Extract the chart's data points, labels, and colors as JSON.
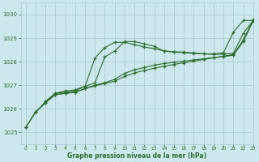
{
  "background_color": "#cce8ec",
  "grid_color": "#aacdd4",
  "line_color": "#2d6e2d",
  "xlabel": "Graphe pression niveau de la mer (hPa)",
  "xlim": [
    -0.5,
    23
  ],
  "ylim": [
    1024.5,
    1030.5
  ],
  "yticks": [
    1025,
    1026,
    1027,
    1028,
    1029,
    1030
  ],
  "xticks": [
    0,
    1,
    2,
    3,
    4,
    5,
    6,
    7,
    8,
    9,
    10,
    11,
    12,
    13,
    14,
    15,
    16,
    17,
    18,
    19,
    20,
    21,
    22,
    23
  ],
  "series1_x": [
    0,
    1,
    2,
    3,
    4,
    5,
    6,
    7,
    8,
    9,
    10,
    11,
    12,
    13,
    14,
    15,
    16,
    17,
    18,
    19,
    20,
    21,
    22,
    23
  ],
  "series1_y": [
    1025.2,
    1025.85,
    1026.3,
    1026.65,
    1026.7,
    1026.75,
    1026.95,
    1027.1,
    1028.2,
    1028.45,
    1028.85,
    1028.85,
    1028.75,
    1028.65,
    1028.45,
    1028.4,
    1028.38,
    1028.35,
    1028.33,
    1028.3,
    1028.32,
    1028.35,
    1029.2,
    1029.75
  ],
  "series2_x": [
    0,
    1,
    2,
    3,
    4,
    5,
    6,
    7,
    8,
    9,
    10,
    11,
    12,
    13,
    14,
    15,
    16,
    17,
    18,
    19,
    20,
    21,
    22,
    23
  ],
  "series2_y": [
    1025.2,
    1025.85,
    1026.25,
    1026.6,
    1026.65,
    1026.7,
    1026.85,
    1027.0,
    1027.1,
    1027.25,
    1027.5,
    1027.65,
    1027.75,
    1027.85,
    1027.92,
    1027.97,
    1028.02,
    1028.07,
    1028.12,
    1028.17,
    1028.22,
    1028.27,
    1028.85,
    1029.72
  ],
  "series3_x": [
    0,
    1,
    2,
    3,
    4,
    5,
    6,
    7,
    8,
    9,
    10,
    11,
    12,
    13,
    14,
    15,
    16,
    17,
    18,
    19,
    20,
    21,
    22,
    23
  ],
  "series3_y": [
    1025.2,
    1025.85,
    1026.25,
    1026.6,
    1026.65,
    1026.7,
    1026.85,
    1026.97,
    1027.07,
    1027.17,
    1027.37,
    1027.52,
    1027.62,
    1027.72,
    1027.8,
    1027.88,
    1027.95,
    1028.02,
    1028.09,
    1028.16,
    1028.23,
    1028.3,
    1028.92,
    1029.78
  ],
  "series4_x": [
    2,
    3,
    4,
    5,
    6,
    7,
    8,
    9,
    10,
    11,
    12,
    13,
    14,
    15,
    16,
    17,
    18,
    19,
    20,
    21,
    22,
    23
  ],
  "series4_y": [
    1026.3,
    1026.65,
    1026.75,
    1026.8,
    1026.95,
    1028.15,
    1028.6,
    1028.82,
    1028.82,
    1028.72,
    1028.62,
    1028.55,
    1028.45,
    1028.42,
    1028.4,
    1028.37,
    1028.33,
    1028.33,
    1028.38,
    1029.25,
    1029.75,
    1029.75
  ]
}
